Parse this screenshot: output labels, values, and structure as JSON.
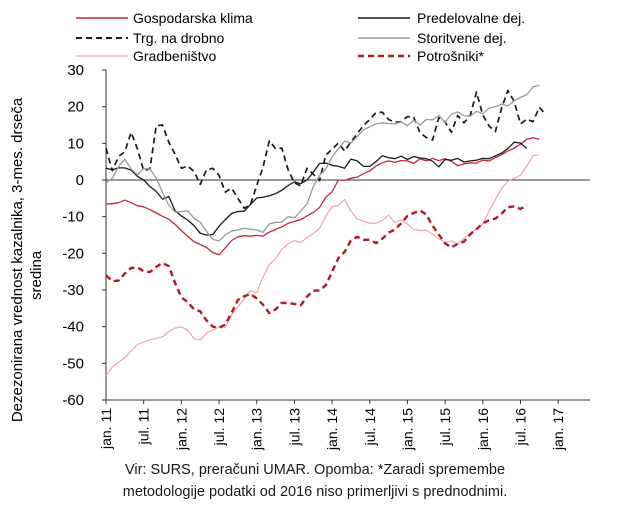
{
  "chart_data": {
    "type": "line",
    "ylabel": "Dezezonirana vrednost kazalnika, 3-mes. drseča sredina",
    "ylim": [
      -60,
      30
    ],
    "yticks": [
      30,
      20,
      10,
      0,
      -10,
      -20,
      -30,
      -40,
      -50,
      -60
    ],
    "x_tick_labels": [
      "jan. 11",
      "jul. 11",
      "jan. 12",
      "jul. 12",
      "jan. 13",
      "jul. 13",
      "jan. 14",
      "jul. 14",
      "jan. 15",
      "jul. 15",
      "jan. 16",
      "jul. 16",
      "jan. 17"
    ],
    "x_start": "2011-01",
    "x_end": "2017-07",
    "grid": false,
    "legend_position": "top",
    "series": [
      {
        "name": "Gospodarska klima",
        "color": "#c0283c",
        "dash": "solid",
        "width": 1.3,
        "values": [
          -6.5,
          -6.5,
          -6.2,
          -5.5,
          -6.2,
          -7.0,
          -7.3,
          -8.1,
          -9.0,
          -9.9,
          -10.7,
          -12.1,
          -13.8,
          -15.3,
          -16.8,
          -17.6,
          -18.4,
          -19.8,
          -20.4,
          -18.5,
          -16.5,
          -15.5,
          -15.2,
          -15.3,
          -15.1,
          -15.3,
          -14.2,
          -13.5,
          -12.8,
          -11.8,
          -11.3,
          -10.8,
          -9.8,
          -8.9,
          -7.5,
          -4.7,
          -3.2,
          0.0,
          -0.1,
          0.5,
          0.8,
          1.7,
          2.5,
          3.8,
          4.7,
          5.2,
          4.8,
          5.3,
          5.2,
          4.5,
          5.8,
          5.2,
          5.9,
          5.3,
          5.8,
          5.1,
          3.9,
          4.4,
          4.7,
          4.6,
          5.4,
          5.2,
          6.1,
          6.9,
          7.9,
          8.7,
          9.8,
          11.1,
          11.5,
          11.1
        ]
      },
      {
        "name": "Predelovalne dej.",
        "color": "#1a1a1a",
        "dash": "solid",
        "width": 1.3,
        "values": [
          3.2,
          2.8,
          3.3,
          3.3,
          2.7,
          1.0,
          0.0,
          -1.8,
          -3.1,
          -5.2,
          -4.5,
          -8.4,
          -9.8,
          -10.9,
          -12.4,
          -14.5,
          -15.0,
          -14.9,
          -12.6,
          -10.8,
          -9.1,
          -8.6,
          -8.5,
          -6.7,
          -4.9,
          -4.7,
          -4.3,
          -3.7,
          -2.8,
          -1.5,
          -0.5,
          -1.0,
          0.0,
          2.1,
          4.5,
          4.6,
          4.0,
          3.7,
          3.2,
          5.7,
          5.2,
          3.7,
          3.7,
          5.0,
          6.6,
          6.1,
          5.8,
          6.5,
          5.6,
          6.4,
          6.0,
          5.8,
          5.1,
          3.6,
          5.6,
          5.4,
          5.9,
          4.9,
          5.2,
          5.4,
          5.9,
          5.8,
          6.6,
          7.3,
          8.6,
          10.3,
          10.1,
          8.6
        ]
      },
      {
        "name": "Trg. na drobno",
        "color": "#1a1a1a",
        "dash": "dash",
        "width": 1.7,
        "values": [
          8.7,
          2.5,
          6.4,
          7.7,
          13.0,
          8.5,
          2.5,
          3.1,
          14.8,
          15.0,
          10.3,
          7.0,
          3.2,
          3.8,
          2.4,
          -1.2,
          2.8,
          3.2,
          1.3,
          -3.3,
          -2.2,
          -5.0,
          -7.7,
          -6.8,
          -1.5,
          3.5,
          10.7,
          8.5,
          8.7,
          2.8,
          -0.8,
          -1.6,
          3.2,
          1.6,
          -0.2,
          6.8,
          8.4,
          10.1,
          7.9,
          10.4,
          12.6,
          14.9,
          16.5,
          18.4,
          18.5,
          16.5,
          15.7,
          15.9,
          17.3,
          17.1,
          12.9,
          11.6,
          10.9,
          17.0,
          15.8,
          13.0,
          17.6,
          15.6,
          17.6,
          24.0,
          17.7,
          14.7,
          13.2,
          19.6,
          24.4,
          21.4,
          15.3,
          16.6,
          15.9,
          19.8,
          17.9
        ]
      },
      {
        "name": "Storitvene dej.",
        "color": "#9a9a9a",
        "dash": "solid",
        "width": 1.3,
        "values": [
          -0.8,
          0.5,
          3.7,
          5.7,
          3.0,
          1.4,
          3.1,
          3.0,
          0.5,
          -3.3,
          -6.9,
          -8.7,
          -8.6,
          -8.4,
          -10.4,
          -11.5,
          -14.0,
          -16.2,
          -16.6,
          -15.0,
          -13.9,
          -13.6,
          -13.2,
          -13.4,
          -13.6,
          -14.3,
          -12.0,
          -11.6,
          -11.5,
          -10.0,
          -10.3,
          -8.5,
          -6.5,
          -1.9,
          1.2,
          3.0,
          6.3,
          8.5,
          10.6,
          10.1,
          11.8,
          13.7,
          14.5,
          15.3,
          15.6,
          15.4,
          15.3,
          15.9,
          14.8,
          16.3,
          15.0,
          16.5,
          16.4,
          17.6,
          15.7,
          17.9,
          18.6,
          17.5,
          17.4,
          18.7,
          18.1,
          19.6,
          20.0,
          20.7,
          20.2,
          21.6,
          22.5,
          23.3,
          25.4,
          25.8
        ]
      },
      {
        "name": "Gradbeništvo",
        "color": "#e8a0a4",
        "dash": "solid",
        "width": 1.1,
        "values": [
          -53.4,
          -51.0,
          -49.7,
          -48.4,
          -46.6,
          -44.9,
          -44.2,
          -43.6,
          -43.2,
          -42.8,
          -41.3,
          -40.4,
          -40.1,
          -40.9,
          -43.2,
          -43.7,
          -41.7,
          -40.9,
          -40.1,
          -40.2,
          -36.7,
          -34.6,
          -32.4,
          -30.2,
          -30.7,
          -26.5,
          -23.1,
          -21.5,
          -18.9,
          -17.4,
          -16.5,
          -17.1,
          -15.7,
          -14.6,
          -13.2,
          -9.9,
          -7.3,
          -6.9,
          -5.3,
          -8.5,
          -10.6,
          -11.2,
          -11.8,
          -11.8,
          -11.0,
          -9.6,
          -11.6,
          -10.9,
          -12.0,
          -13.5,
          -13.8,
          -13.7,
          -14.8,
          -16.0,
          -17.0,
          -16.6,
          -17.5,
          -15.9,
          -14.5,
          -13.4,
          -12.0,
          -8.5,
          -5.2,
          -2.4,
          -0.3,
          0.5,
          1.3,
          3.8,
          6.6,
          6.9
        ]
      },
      {
        "name": "Potrošniki*",
        "color": "#b01a26",
        "dash": "dash",
        "width": 2.4,
        "values": [
          -26,
          -27.6,
          -27.4,
          -25.5,
          -24,
          -23.8,
          -24.9,
          -25.1,
          -23.7,
          -22.6,
          -23.5,
          -28.1,
          -32,
          -33.3,
          -35.2,
          -35.8,
          -38.3,
          -40.0,
          -40.3,
          -39.4,
          -36.2,
          -32.7,
          -31.7,
          -31.1,
          -32.3,
          -34.0,
          -36.3,
          -35.3,
          -33.5,
          -33.6,
          -33.8,
          -34.2,
          -31.8,
          -30.2,
          -30.1,
          -28.7,
          -25.0,
          -21.3,
          -19.6,
          -16.5,
          -15.5,
          -16.3,
          -16.3,
          -17.2,
          -16.0,
          -14.4,
          -13.5,
          -11.8,
          -9.8,
          -9.0,
          -8.3,
          -9.4,
          -12.5,
          -14.9,
          -17.3,
          -18.4,
          -17.4,
          -16.8,
          -14.8,
          -13.4,
          -11.8,
          -11.0,
          -10.5,
          -9.2,
          -7.4,
          -7.2,
          -7.9,
          -6.8
        ]
      }
    ],
    "source_lines": [
      "Vir: SURS, preračuni UMAR. Opomba: *Zaradi spremembe",
      "metodologije podatki od 2016 niso primerljivi s prednodnimi."
    ]
  }
}
